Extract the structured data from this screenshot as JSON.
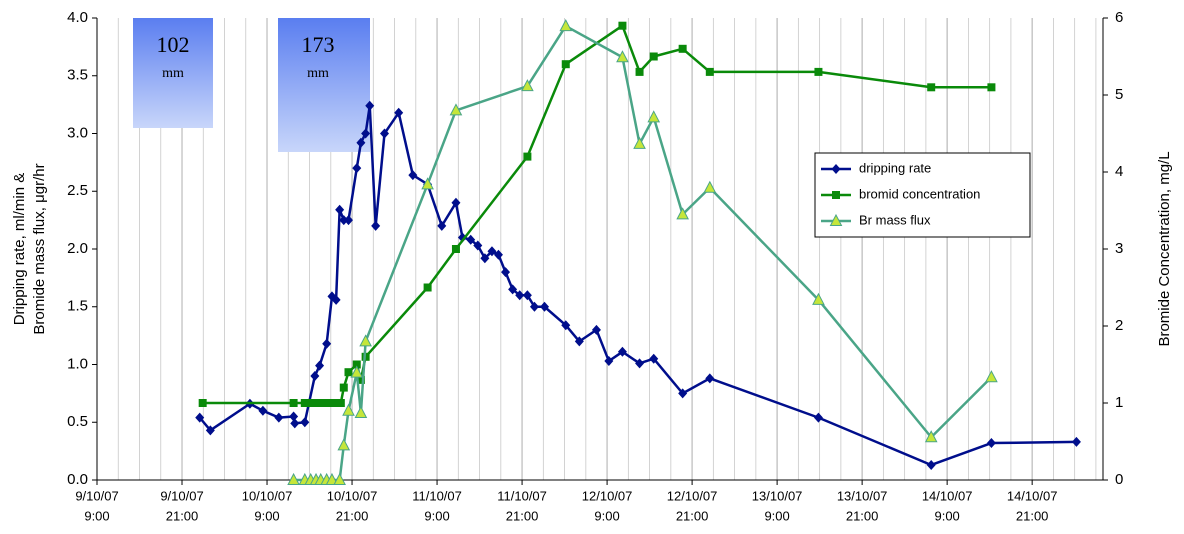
{
  "chart_data": {
    "type": "line",
    "ylabel": [
      "Dripping rate, ml/min &",
      "Bromide mass flux, μgr/hr"
    ],
    "y2label": "Bromide Concentration, mg/L",
    "xlim": [
      "2007-10-09T09:00",
      "2007-10-15T07:00"
    ],
    "xticks": [
      {
        "value": "2007-10-09T09:00",
        "label": [
          "9/10/07",
          "9:00"
        ]
      },
      {
        "value": "2007-10-09T21:00",
        "label": [
          "9/10/07",
          "21:00"
        ]
      },
      {
        "value": "2007-10-10T09:00",
        "label": [
          "10/10/07",
          "9:00"
        ]
      },
      {
        "value": "2007-10-10T21:00",
        "label": [
          "10/10/07",
          "21:00"
        ]
      },
      {
        "value": "2007-10-11T09:00",
        "label": [
          "11/10/07",
          "9:00"
        ]
      },
      {
        "value": "2007-10-11T21:00",
        "label": [
          "11/10/07",
          "21:00"
        ]
      },
      {
        "value": "2007-10-12T09:00",
        "label": [
          "12/10/07",
          "9:00"
        ]
      },
      {
        "value": "2007-10-12T21:00",
        "label": [
          "12/10/07",
          "21:00"
        ]
      },
      {
        "value": "2007-10-13T09:00",
        "label": [
          "13/10/07",
          "9:00"
        ]
      },
      {
        "value": "2007-10-13T21:00",
        "label": [
          "13/10/07",
          "21:00"
        ]
      },
      {
        "value": "2007-10-14T09:00",
        "label": [
          "14/10/07",
          "9:00"
        ]
      },
      {
        "value": "2007-10-14T21:00",
        "label": [
          "14/10/07",
          "21:00"
        ]
      }
    ],
    "x_minor_grid_hours": 3,
    "ylim": [
      0,
      4
    ],
    "yticks": [
      {
        "value": 0,
        "label": "0.0"
      },
      {
        "value": 0.5,
        "label": "0.5"
      },
      {
        "value": 1,
        "label": "1.0"
      },
      {
        "value": 1.5,
        "label": "1.5"
      },
      {
        "value": 2,
        "label": "2.0"
      },
      {
        "value": 2.5,
        "label": "2.5"
      },
      {
        "value": 3,
        "label": "3.0"
      },
      {
        "value": 3.5,
        "label": "3.5"
      },
      {
        "value": 4,
        "label": "4.0"
      }
    ],
    "y2lim": [
      0,
      6
    ],
    "y2ticks": [
      0,
      1,
      2,
      3,
      4,
      5,
      6
    ],
    "legend": "center right",
    "annotations": [
      {
        "text": "102",
        "unit": "mm"
      },
      {
        "text": "173",
        "unit": "mm"
      }
    ],
    "series": [
      {
        "name": "dripping rate",
        "color": "#000e8c",
        "marker": "diamond",
        "marker_color": "#000e8c",
        "x": [
          "2007-10-09T23:30",
          "2007-10-10T01:00",
          "2007-10-10T06:35",
          "2007-10-10T08:25",
          "2007-10-10T10:40",
          "2007-10-10T12:45",
          "2007-10-10T12:55",
          "2007-10-10T14:20",
          "2007-10-10T15:45",
          "2007-10-10T16:25",
          "2007-10-10T17:25",
          "2007-10-10T18:10",
          "2007-10-10T18:45",
          "2007-10-10T19:15",
          "2007-10-10T19:50",
          "2007-10-10T20:30",
          "2007-10-10T21:40",
          "2007-10-10T22:15",
          "2007-10-10T22:55",
          "2007-10-10T23:30",
          "2007-10-11T00:20",
          "2007-10-11T01:35",
          "2007-10-11T03:35",
          "2007-10-11T05:35",
          "2007-10-11T07:40",
          "2007-10-11T09:40",
          "2007-10-11T11:40",
          "2007-10-11T12:35",
          "2007-10-11T13:45",
          "2007-10-11T14:45",
          "2007-10-11T15:45",
          "2007-10-11T16:45",
          "2007-10-11T17:40",
          "2007-10-11T18:40",
          "2007-10-11T19:40",
          "2007-10-11T20:40",
          "2007-10-11T21:45",
          "2007-10-11T22:45",
          "2007-10-12T00:10",
          "2007-10-12T03:10",
          "2007-10-12T05:05",
          "2007-10-12T07:30",
          "2007-10-12T09:15",
          "2007-10-12T11:10",
          "2007-10-12T13:35",
          "2007-10-12T15:35",
          "2007-10-12T19:40",
          "2007-10-12T23:30",
          "2007-10-13T14:50",
          "2007-10-14T06:45",
          "2007-10-14T15:15",
          "2007-10-15T03:15"
        ],
        "values": [
          0.54,
          0.43,
          0.66,
          0.6,
          0.54,
          0.55,
          0.49,
          0.5,
          0.9,
          0.99,
          1.18,
          1.59,
          1.56,
          2.34,
          2.25,
          2.25,
          2.7,
          2.92,
          3.0,
          3.24,
          2.2,
          3.0,
          3.18,
          2.64,
          2.56,
          2.2,
          2.4,
          2.1,
          2.08,
          2.03,
          1.92,
          1.98,
          1.95,
          1.8,
          1.65,
          1.6,
          1.6,
          1.5,
          1.5,
          1.34,
          1.2,
          1.3,
          1.03,
          1.11,
          1.01,
          1.05,
          0.75,
          0.88,
          0.54,
          0.13,
          0.32,
          0.33
        ]
      },
      {
        "name": "bromid concentration",
        "color": "#0a8a0a",
        "marker": "square",
        "marker_color": "#0a8a0a",
        "axis": "y2",
        "x": [
          "2007-10-09T23:55",
          "2007-10-10T12:45",
          "2007-10-10T14:20",
          "2007-10-10T15:10",
          "2007-10-10T15:55",
          "2007-10-10T16:35",
          "2007-10-10T17:20",
          "2007-10-10T18:00",
          "2007-10-10T18:45",
          "2007-10-10T19:25",
          "2007-10-10T19:50",
          "2007-10-10T20:30",
          "2007-10-10T21:40",
          "2007-10-10T22:15",
          "2007-10-10T22:55",
          "2007-10-11T07:40",
          "2007-10-11T11:40",
          "2007-10-11T21:45",
          "2007-10-12T03:10",
          "2007-10-12T11:10",
          "2007-10-12T13:35",
          "2007-10-12T15:35",
          "2007-10-12T19:40",
          "2007-10-12T23:30",
          "2007-10-13T14:50",
          "2007-10-14T06:45",
          "2007-10-14T15:15"
        ],
        "values": [
          1,
          1,
          1,
          1,
          1,
          1,
          1,
          1,
          1,
          1,
          1.2,
          1.4,
          1.5,
          1.3,
          1.6,
          2.5,
          3.0,
          4.2,
          5.4,
          5.9,
          5.3,
          5.5,
          5.6,
          5.3,
          5.3,
          5.1,
          5.1
        ]
      },
      {
        "name": "Br mass flux",
        "color": "#4aa587",
        "marker": "triangle",
        "marker_color": "#c5e63a",
        "x": [
          "2007-10-10T12:45",
          "2007-10-10T14:20",
          "2007-10-10T15:10",
          "2007-10-10T15:55",
          "2007-10-10T16:35",
          "2007-10-10T17:25",
          "2007-10-10T18:10",
          "2007-10-10T19:15",
          "2007-10-10T19:50",
          "2007-10-10T20:30",
          "2007-10-10T21:40",
          "2007-10-10T22:15",
          "2007-10-10T22:55",
          "2007-10-11T07:40",
          "2007-10-11T11:40",
          "2007-10-11T21:45",
          "2007-10-12T03:10",
          "2007-10-12T11:10",
          "2007-10-12T13:35",
          "2007-10-12T15:35",
          "2007-10-12T19:40",
          "2007-10-12T23:30",
          "2007-10-13T14:50",
          "2007-10-14T06:45",
          "2007-10-14T15:15"
        ],
        "values": [
          0,
          0,
          0,
          0,
          0,
          0,
          0,
          0,
          0.3,
          0.6,
          0.93,
          0.58,
          1.2,
          2.56,
          3.2,
          3.41,
          3.93,
          3.66,
          2.91,
          3.14,
          2.3,
          2.53,
          1.56,
          0.37,
          0.89
        ]
      }
    ]
  }
}
